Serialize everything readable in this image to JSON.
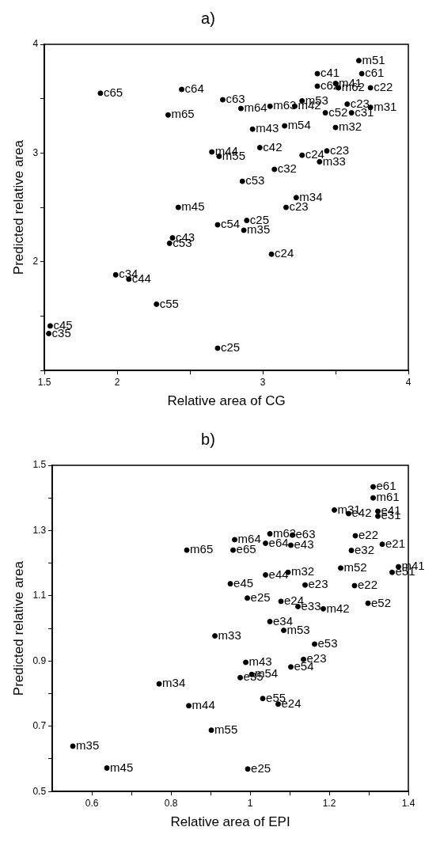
{
  "chart_data": [
    {
      "type": "scatter",
      "title": "a)",
      "xlabel": "Relative area of CG",
      "ylabel": "Predicted relative area",
      "marker": "circle",
      "grid": false,
      "legend": false,
      "xlim": [
        1.5,
        4
      ],
      "xticks": [
        1.5,
        2,
        {
          "value": 2.5,
          "label": null
        },
        3,
        {
          "value": 3.5,
          "label": null
        },
        4
      ],
      "ylim": [
        1,
        4
      ],
      "yticks": [
        {
          "value": 1,
          "label": null
        },
        {
          "value": 1.5,
          "label": null
        },
        2,
        {
          "value": 2.5,
          "label": null
        },
        3,
        {
          "value": 3.5,
          "label": null
        },
        4
      ],
      "series": [
        {
          "color": "#000000",
          "x": [
            1.885,
            2.443,
            2.725,
            2.35,
            2.85,
            3.05,
            3.22,
            3.27,
            3.375,
            3.66,
            3.68,
            3.375,
            3.5,
            3.52,
            3.74,
            3.58,
            3.61,
            3.74,
            3.43,
            2.93,
            3.15,
            3.5,
            2.65,
            2.7,
            2.98,
            3.27,
            3.44,
            3.39,
            3.08,
            2.86,
            3.23,
            3.16,
            2.42,
            2.69,
            2.89,
            2.87,
            2.38,
            2.36,
            3.06,
            1.99,
            2.08,
            2.27,
            1.54,
            1.53,
            2.69
          ],
          "values": [
            3.55,
            3.585,
            3.49,
            3.35,
            3.41,
            3.43,
            3.43,
            3.48,
            3.73,
            3.85,
            3.73,
            3.615,
            3.64,
            3.6,
            3.6,
            3.45,
            3.37,
            3.42,
            3.37,
            3.22,
            3.25,
            3.235,
            3.01,
            2.97,
            3.05,
            2.98,
            3.02,
            2.92,
            2.85,
            2.74,
            2.59,
            2.5,
            2.5,
            2.34,
            2.38,
            2.29,
            2.22,
            2.17,
            2.07,
            1.88,
            1.84,
            1.61,
            1.41,
            1.34,
            1.205
          ],
          "value_labels": [
            "c65",
            "c64",
            "c63",
            "m65",
            "m64",
            "m63",
            "m42",
            "m53",
            "c41",
            "m51",
            "c61",
            "c62",
            "m41",
            "m62",
            "c22",
            "c23",
            "c31",
            "m31",
            "c52",
            "m43",
            "m54",
            "m32",
            "m44",
            "m55",
            "c42",
            "c24",
            "c23",
            "m33",
            "c32",
            "c53",
            "m34",
            "c23",
            "m45",
            "c54",
            "c25",
            "m35",
            "c43",
            "c53",
            "c24",
            "c34",
            "c44",
            "c55",
            "c45",
            "c35",
            "c25"
          ]
        }
      ]
    },
    {
      "type": "scatter",
      "title": "b)",
      "xlabel": "Relative area of EPI",
      "ylabel": "Predicted relative area",
      "marker": "circle",
      "grid": false,
      "legend": false,
      "xlim": [
        0.5,
        1.4
      ],
      "xticks": [
        0.6,
        {
          "value": 0.7,
          "label": null
        },
        0.8,
        {
          "value": 0.9,
          "label": null
        },
        1,
        {
          "value": 1.1,
          "label": null
        },
        1.2,
        {
          "value": 1.3,
          "label": null
        },
        1.4
      ],
      "ylim": [
        0.5,
        1.5
      ],
      "yticks": [
        0.5,
        {
          "value": 0.6,
          "label": null
        },
        0.7,
        {
          "value": 0.8,
          "label": null
        },
        0.9,
        {
          "value": 1.0,
          "label": null
        },
        1.1,
        {
          "value": 1.2,
          "label": null
        },
        1.3,
        {
          "value": 1.4,
          "label": null
        },
        1.5
      ],
      "series": [
        {
          "color": "#000000",
          "x": [
            1.311,
            1.311,
            1.213,
            1.249,
            1.323,
            1.323,
            1.266,
            1.334,
            1.256,
            0.961,
            1.05,
            1.107,
            1.039,
            1.103,
            0.84,
            0.957,
            1.229,
            1.375,
            1.359,
            1.039,
            1.096,
            0.95,
            1.139,
            1.264,
            0.993,
            1.078,
            1.121,
            1.185,
            1.298,
            1.05,
            1.085,
            0.911,
            1.163,
            0.989,
            1.135,
            1.103,
            1.004,
            0.975,
            0.77,
            1.032,
            1.071,
            0.845,
            0.902,
            0.552,
            0.638,
            0.994
          ],
          "values": [
            1.434,
            1.4,
            1.363,
            1.352,
            1.359,
            1.344,
            1.284,
            1.258,
            1.239,
            1.272,
            1.29,
            1.286,
            1.261,
            1.255,
            1.24,
            1.24,
            1.185,
            1.189,
            1.172,
            1.164,
            1.172,
            1.137,
            1.133,
            1.131,
            1.093,
            1.083,
            1.067,
            1.06,
            1.077,
            1.021,
            0.994,
            0.977,
            0.952,
            0.896,
            0.905,
            0.882,
            0.859,
            0.849,
            0.83,
            0.785,
            0.768,
            0.763,
            0.688,
            0.639,
            0.572,
            0.569
          ],
          "value_labels": [
            "e61",
            "m61",
            "m31",
            "e42",
            "e41",
            "e31",
            "e22",
            "e21",
            "e32",
            "m64",
            "m63",
            "e63",
            "e64",
            "e43",
            "m65",
            "e65",
            "m52",
            "m41",
            "e51",
            "e44",
            "m32",
            "e45",
            "e23",
            "e22",
            "e25",
            "e24",
            "e33",
            "m42",
            "e52",
            "e34",
            "m53",
            "m33",
            "e53",
            "m43",
            "e23",
            "e54",
            "m54",
            "e35",
            "m34",
            "e55",
            "e24",
            "m44",
            "m55",
            "m35",
            "m45",
            "e25"
          ]
        }
      ]
    }
  ]
}
